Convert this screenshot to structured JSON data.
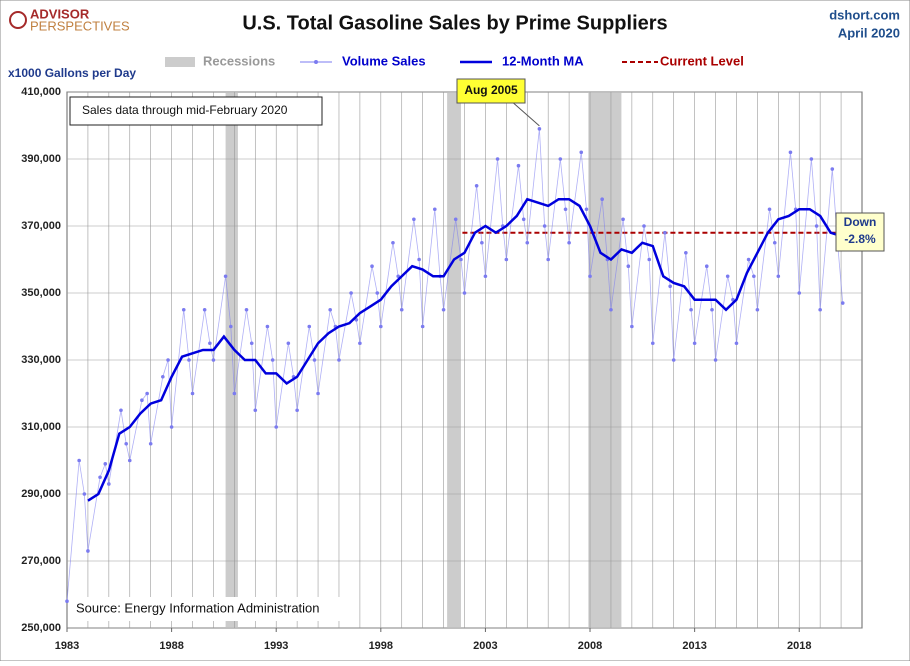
{
  "chart_data": {
    "type": "line",
    "title": "U.S. Total Gasoline Sales by Prime Suppliers",
    "logo": [
      "ADVISOR",
      "PERSPECTIVES"
    ],
    "site": "dshort.com",
    "date": "April 2020",
    "ylabel": "x1000  Gallons per Day",
    "note": "Sales data through mid-February 2020",
    "source": "Source: Energy Information Administration",
    "xlim": [
      1983,
      2021
    ],
    "xticks": [
      1983,
      1988,
      1993,
      1998,
      2003,
      2008,
      2013,
      2018
    ],
    "x_grid_step": 1,
    "ylim": [
      250000,
      410000
    ],
    "yticks": [
      {
        "value": 250000,
        "label": "250,000"
      },
      {
        "value": 270000,
        "label": "270,000"
      },
      {
        "value": 290000,
        "label": "290,000"
      },
      {
        "value": 310000,
        "label": "310,000"
      },
      {
        "value": 330000,
        "label": "330,000"
      },
      {
        "value": 350000,
        "label": "350,000"
      },
      {
        "value": 370000,
        "label": "370,000"
      },
      {
        "value": 390000,
        "label": "390,000"
      },
      {
        "value": 410000,
        "label": "410,000"
      }
    ],
    "grid": true,
    "recessions": {
      "name": "Recessions",
      "color": "#cccccc",
      "ranges": [
        [
          1990.58,
          1991.17
        ],
        [
          2001.17,
          2001.83
        ],
        [
          2007.92,
          2009.5
        ]
      ]
    },
    "series": [
      {
        "name": "Volume Sales",
        "color": "#7b7bf0",
        "style": "dots",
        "x": [
          1983,
          1983.58,
          1983.83,
          1984,
          1984.58,
          1984.83,
          1985,
          1985.58,
          1985.83,
          1986,
          1986.58,
          1986.83,
          1987,
          1987.58,
          1987.83,
          1988,
          1988.58,
          1988.83,
          1989,
          1989.58,
          1989.83,
          1990,
          1990.58,
          1990.83,
          1991,
          1991.58,
          1991.83,
          1992,
          1992.58,
          1992.83,
          1993,
          1993.58,
          1993.83,
          1994,
          1994.58,
          1994.83,
          1995,
          1995.58,
          1995.83,
          1996,
          1996.58,
          1996.83,
          1997,
          1997.58,
          1997.83,
          1998,
          1998.58,
          1998.83,
          1999,
          1999.58,
          1999.83,
          2000,
          2000.58,
          2000.83,
          2001,
          2001.58,
          2001.83,
          2002,
          2002.58,
          2002.83,
          2003,
          2003.58,
          2003.83,
          2004,
          2004.58,
          2004.83,
          2005,
          2005.58,
          2005.83,
          2006,
          2006.58,
          2006.83,
          2007,
          2007.58,
          2007.83,
          2008,
          2008.58,
          2008.83,
          2009,
          2009.58,
          2009.83,
          2010,
          2010.58,
          2010.83,
          2011,
          2011.58,
          2011.83,
          2012,
          2012.58,
          2012.83,
          2013,
          2013.58,
          2013.83,
          2014,
          2014.58,
          2014.83,
          2015,
          2015.58,
          2015.83,
          2016,
          2016.58,
          2016.83,
          2017,
          2017.58,
          2017.83,
          2018,
          2018.58,
          2018.83,
          2019,
          2019.58,
          2019.83,
          2020.08
        ],
        "values": [
          258000,
          300000,
          290000,
          273000,
          295000,
          299000,
          293000,
          315000,
          305000,
          300000,
          318000,
          320000,
          305000,
          325000,
          330000,
          310000,
          345000,
          330000,
          320000,
          345000,
          335000,
          330000,
          355000,
          340000,
          320000,
          345000,
          335000,
          315000,
          340000,
          330000,
          310000,
          335000,
          325000,
          315000,
          340000,
          330000,
          320000,
          345000,
          340000,
          330000,
          350000,
          342000,
          335000,
          358000,
          350000,
          340000,
          365000,
          355000,
          345000,
          372000,
          360000,
          340000,
          375000,
          355000,
          345000,
          372000,
          360000,
          350000,
          382000,
          365000,
          355000,
          390000,
          370000,
          360000,
          388000,
          372000,
          365000,
          399000,
          370000,
          360000,
          390000,
          375000,
          365000,
          392000,
          375000,
          355000,
          378000,
          360000,
          345000,
          372000,
          358000,
          340000,
          370000,
          360000,
          335000,
          368000,
          352000,
          330000,
          362000,
          345000,
          335000,
          358000,
          345000,
          330000,
          355000,
          348000,
          335000,
          360000,
          355000,
          345000,
          375000,
          365000,
          355000,
          392000,
          375000,
          350000,
          390000,
          370000,
          345000,
          387000,
          365000,
          347000
        ]
      },
      {
        "name": "12-Month MA",
        "color": "#0000dd",
        "style": "thick",
        "x": [
          1984,
          1984.5,
          1985,
          1985.5,
          1986,
          1986.5,
          1987,
          1987.5,
          1988,
          1988.5,
          1989,
          1989.5,
          1990,
          1990.5,
          1991,
          1991.5,
          1992,
          1992.5,
          1993,
          1993.5,
          1994,
          1994.5,
          1995,
          1995.5,
          1996,
          1996.5,
          1997,
          1997.5,
          1998,
          1998.5,
          1999,
          1999.5,
          2000,
          2000.5,
          2001,
          2001.5,
          2002,
          2002.5,
          2003,
          2003.5,
          2004,
          2004.5,
          2005,
          2005.5,
          2006,
          2006.5,
          2007,
          2007.5,
          2008,
          2008.5,
          2009,
          2009.5,
          2010,
          2010.5,
          2011,
          2011.5,
          2012,
          2012.5,
          2013,
          2013.5,
          2014,
          2014.5,
          2015,
          2015.5,
          2016,
          2016.5,
          2017,
          2017.5,
          2018,
          2018.5,
          2019,
          2019.5,
          2020,
          2020.15
        ],
        "values": [
          288000,
          290000,
          297000,
          308000,
          310000,
          314000,
          317000,
          318000,
          325000,
          331000,
          332000,
          333000,
          333000,
          337000,
          333000,
          330000,
          330000,
          326000,
          326000,
          323000,
          325000,
          330000,
          335000,
          338000,
          340000,
          341000,
          344000,
          346000,
          348000,
          352000,
          355000,
          358000,
          357000,
          355000,
          355000,
          360000,
          362000,
          368000,
          370000,
          368000,
          370000,
          373000,
          378000,
          377000,
          376000,
          378000,
          378000,
          376000,
          370000,
          362000,
          360000,
          363000,
          362000,
          365000,
          364000,
          355000,
          353000,
          352000,
          348000,
          348000,
          348000,
          345000,
          348000,
          356000,
          362000,
          368000,
          372000,
          373000,
          375000,
          375000,
          373000,
          368000,
          367000,
          367000
        ]
      }
    ],
    "current_level": {
      "name": "Current Level",
      "color": "#aa0000",
      "value": 368000,
      "start": 2001.9,
      "end": 2020.2
    },
    "callouts": [
      {
        "label": "Aug 2005",
        "x": 2005.58,
        "y": 399000
      },
      {
        "label": "Down",
        "label2": "-2.8%",
        "x": 2020.2,
        "y": 368000
      }
    ]
  }
}
